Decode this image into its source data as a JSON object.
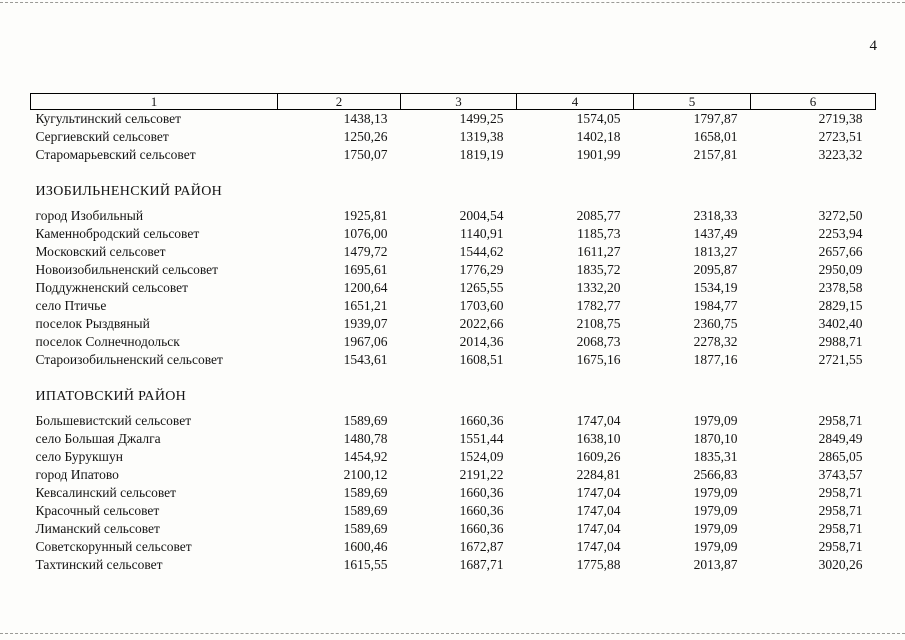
{
  "page": {
    "number": "4"
  },
  "table": {
    "headers": [
      "1",
      "2",
      "3",
      "4",
      "5",
      "6"
    ],
    "rows": [
      {
        "type": "data",
        "name": "Кугультинский сельсовет",
        "values": [
          "1438,13",
          "1499,25",
          "1574,05",
          "1797,87",
          "2719,38"
        ]
      },
      {
        "type": "data",
        "name": "Сергиевский сельсовет",
        "values": [
          "1250,26",
          "1319,38",
          "1402,18",
          "1658,01",
          "2723,51"
        ]
      },
      {
        "type": "data",
        "name": "Старомарьевский сельсовет",
        "values": [
          "1750,07",
          "1819,19",
          "1901,99",
          "2157,81",
          "3223,32"
        ]
      },
      {
        "type": "spacer"
      },
      {
        "type": "section",
        "name": "ИЗОБИЛЬНЕНСКИЙ РАЙОН"
      },
      {
        "type": "data",
        "name": "город Изобильный",
        "values": [
          "1925,81",
          "2004,54",
          "2085,77",
          "2318,33",
          "3272,50"
        ]
      },
      {
        "type": "data",
        "name": "Каменнобродский сельсовет",
        "values": [
          "1076,00",
          "1140,91",
          "1185,73",
          "1437,49",
          "2253,94"
        ]
      },
      {
        "type": "data",
        "name": "Московский сельсовет",
        "values": [
          "1479,72",
          "1544,62",
          "1611,27",
          "1813,27",
          "2657,66"
        ]
      },
      {
        "type": "data",
        "name": "Новоизобильненский сельсовет",
        "values": [
          "1695,61",
          "1776,29",
          "1835,72",
          "2095,87",
          "2950,09"
        ]
      },
      {
        "type": "data",
        "name": "Поддужненский сельсовет",
        "values": [
          "1200,64",
          "1265,55",
          "1332,20",
          "1534,19",
          "2378,58"
        ]
      },
      {
        "type": "data",
        "name": "село Птичье",
        "values": [
          "1651,21",
          "1703,60",
          "1782,77",
          "1984,77",
          "2829,15"
        ]
      },
      {
        "type": "data",
        "name": "поселок Рыздвяный",
        "values": [
          "1939,07",
          "2022,66",
          "2108,75",
          "2360,75",
          "3402,40"
        ]
      },
      {
        "type": "data",
        "name": "поселок Солнечнодольск",
        "values": [
          "1967,06",
          "2014,36",
          "2068,73",
          "2278,32",
          "2988,71"
        ]
      },
      {
        "type": "data",
        "name": "Староизобильненский сельсовет",
        "values": [
          "1543,61",
          "1608,51",
          "1675,16",
          "1877,16",
          "2721,55"
        ]
      },
      {
        "type": "spacer"
      },
      {
        "type": "section",
        "name": "ИПАТОВСКИЙ РАЙОН"
      },
      {
        "type": "data",
        "name": "Большевистский сельсовет",
        "values": [
          "1589,69",
          "1660,36",
          "1747,04",
          "1979,09",
          "2958,71"
        ]
      },
      {
        "type": "data",
        "name": "село Большая Джалга",
        "values": [
          "1480,78",
          "1551,44",
          "1638,10",
          "1870,10",
          "2849,49"
        ]
      },
      {
        "type": "data",
        "name": "село Бурукшун",
        "values": [
          "1454,92",
          "1524,09",
          "1609,26",
          "1835,31",
          "2865,05"
        ]
      },
      {
        "type": "data",
        "name": "город Ипатово",
        "values": [
          "2100,12",
          "2191,22",
          "2284,81",
          "2566,83",
          "3743,57"
        ]
      },
      {
        "type": "data",
        "name": "Кевсалинский сельсовет",
        "values": [
          "1589,69",
          "1660,36",
          "1747,04",
          "1979,09",
          "2958,71"
        ]
      },
      {
        "type": "data",
        "name": "Красочный сельсовет",
        "values": [
          "1589,69",
          "1660,36",
          "1747,04",
          "1979,09",
          "2958,71"
        ]
      },
      {
        "type": "data",
        "name": "Лиманский сельсовет",
        "values": [
          "1589,69",
          "1660,36",
          "1747,04",
          "1979,09",
          "2958,71"
        ]
      },
      {
        "type": "data",
        "name": "Советскорунный сельсовет",
        "values": [
          "1600,46",
          "1672,87",
          "1747,04",
          "1979,09",
          "2958,71"
        ]
      },
      {
        "type": "data",
        "name": "Тахтинский сельсовет",
        "values": [
          "1615,55",
          "1687,71",
          "1775,88",
          "2013,87",
          "3020,26"
        ]
      }
    ]
  }
}
